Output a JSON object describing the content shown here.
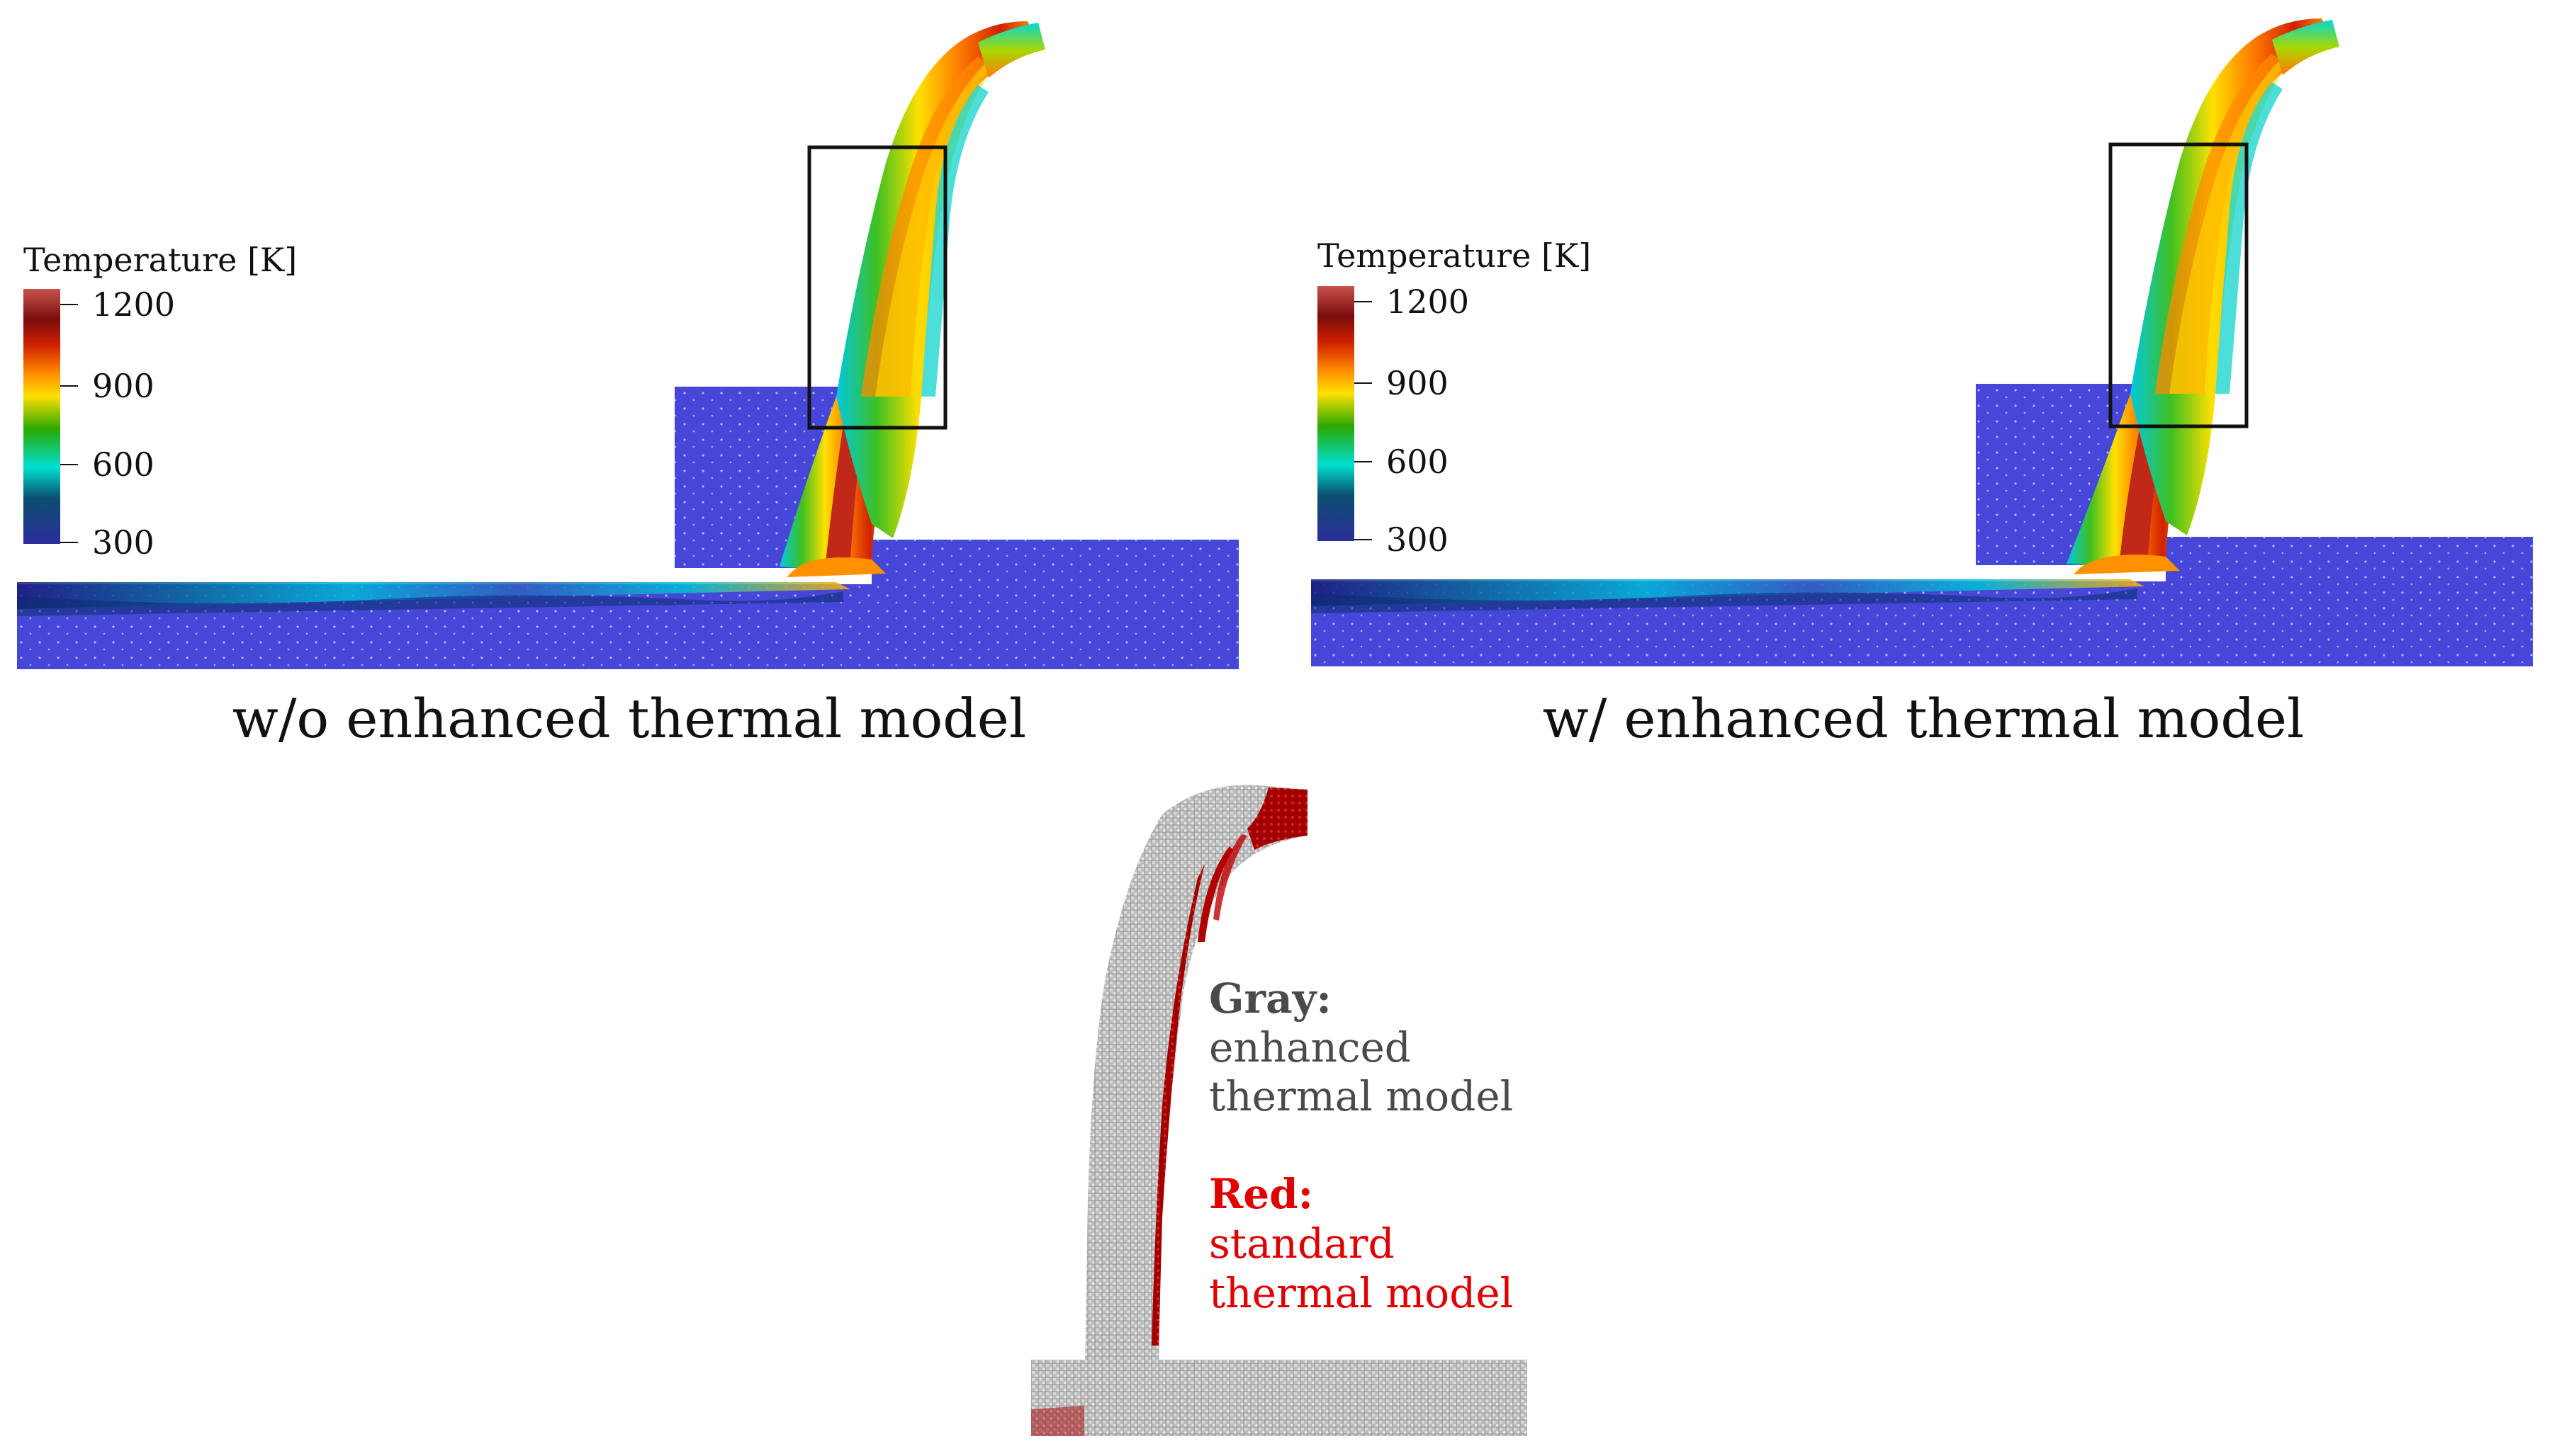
{
  "legend": {
    "title": "Temperature [K]",
    "ticks": [
      "1200",
      "900",
      "600",
      "300"
    ],
    "colormap": [
      "#b8413a",
      "#6e0a0a",
      "#c81e00",
      "#ff7a00",
      "#ffd400",
      "#3aa800",
      "#00d8c8",
      "#0a5a7a",
      "#2a2a90"
    ]
  },
  "panels": [
    {
      "caption": "w/o enhanced thermal model"
    },
    {
      "caption": "w/ enhanced thermal model"
    }
  ],
  "comparison": {
    "gray_label": "Gray:",
    "gray_lines": [
      "enhanced",
      "thermal model"
    ],
    "red_label": "Red:",
    "red_lines": [
      "standard",
      "thermal model"
    ],
    "gray_color": "#4a4a4a",
    "red_color": "#e00000"
  },
  "colors": {
    "workpiece": "#4646d8",
    "highlight_box": "#111111"
  }
}
